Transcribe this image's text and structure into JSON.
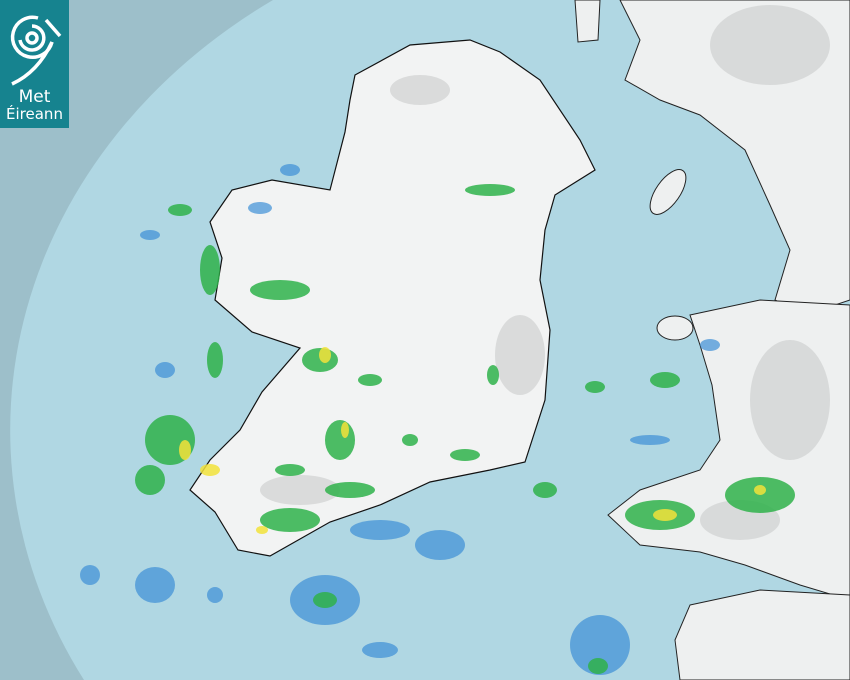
{
  "logo": {
    "line1": "Met",
    "line2": "Éireann"
  },
  "colors": {
    "outside_coverage": "#9dbfca",
    "sea": "#b0d7e3",
    "land": "#f2f3f3",
    "coast": "#111111",
    "rain_light": "#3d8fd6",
    "rain_moderate": "#2fb24a",
    "rain_heavy": "#f2e23a",
    "brand": "#16838f"
  }
}
